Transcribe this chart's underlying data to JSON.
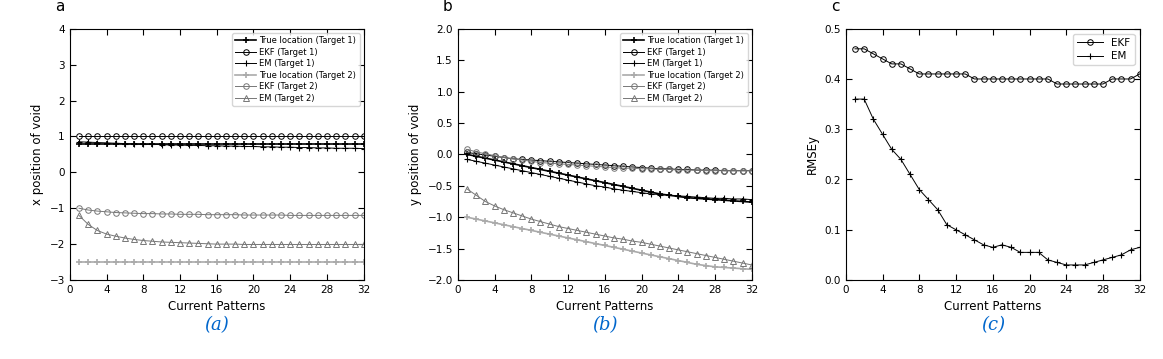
{
  "x": [
    1,
    2,
    3,
    4,
    5,
    6,
    7,
    8,
    9,
    10,
    11,
    12,
    13,
    14,
    15,
    16,
    17,
    18,
    19,
    20,
    21,
    22,
    23,
    24,
    25,
    26,
    27,
    28,
    29,
    30,
    31,
    32
  ],
  "a_true1": [
    0.8,
    0.8,
    0.8,
    0.8,
    0.8,
    0.8,
    0.8,
    0.8,
    0.8,
    0.8,
    0.8,
    0.8,
    0.8,
    0.8,
    0.8,
    0.8,
    0.8,
    0.8,
    0.8,
    0.8,
    0.8,
    0.8,
    0.8,
    0.8,
    0.8,
    0.8,
    0.8,
    0.8,
    0.8,
    0.8,
    0.8,
    0.8
  ],
  "a_ekf1": [
    1.0,
    1.0,
    1.0,
    1.0,
    1.0,
    1.0,
    1.0,
    1.0,
    1.0,
    1.0,
    1.0,
    1.0,
    1.0,
    1.0,
    1.0,
    1.0,
    1.0,
    1.0,
    1.0,
    1.0,
    1.0,
    1.0,
    1.0,
    1.0,
    1.0,
    1.0,
    1.0,
    1.0,
    1.0,
    1.0,
    1.0,
    1.0
  ],
  "a_em1": [
    0.85,
    0.84,
    0.83,
    0.82,
    0.81,
    0.8,
    0.79,
    0.78,
    0.78,
    0.77,
    0.76,
    0.76,
    0.75,
    0.75,
    0.74,
    0.74,
    0.73,
    0.73,
    0.72,
    0.72,
    0.71,
    0.71,
    0.7,
    0.7,
    0.69,
    0.69,
    0.68,
    0.68,
    0.67,
    0.67,
    0.67,
    0.66
  ],
  "a_true2": [
    -2.5,
    -2.5,
    -2.5,
    -2.5,
    -2.5,
    -2.5,
    -2.5,
    -2.5,
    -2.5,
    -2.5,
    -2.5,
    -2.5,
    -2.5,
    -2.5,
    -2.5,
    -2.5,
    -2.5,
    -2.5,
    -2.5,
    -2.5,
    -2.5,
    -2.5,
    -2.5,
    -2.5,
    -2.5,
    -2.5,
    -2.5,
    -2.5,
    -2.5,
    -2.5,
    -2.5,
    -2.5
  ],
  "a_ekf2": [
    -1.0,
    -1.05,
    -1.08,
    -1.1,
    -1.12,
    -1.13,
    -1.14,
    -1.15,
    -1.15,
    -1.16,
    -1.16,
    -1.17,
    -1.17,
    -1.17,
    -1.18,
    -1.18,
    -1.18,
    -1.18,
    -1.19,
    -1.19,
    -1.19,
    -1.19,
    -1.19,
    -1.2,
    -1.2,
    -1.2,
    -1.2,
    -1.2,
    -1.2,
    -1.2,
    -1.2,
    -1.2
  ],
  "a_em2": [
    -1.2,
    -1.45,
    -1.62,
    -1.72,
    -1.78,
    -1.83,
    -1.87,
    -1.9,
    -1.92,
    -1.94,
    -1.95,
    -1.96,
    -1.97,
    -1.98,
    -1.99,
    -2.0,
    -2.0,
    -2.0,
    -2.01,
    -2.01,
    -2.01,
    -2.01,
    -2.01,
    -2.01,
    -2.01,
    -2.01,
    -2.01,
    -2.01,
    -2.01,
    -2.01,
    -2.01,
    -2.01
  ],
  "b_true1": [
    0.0,
    -0.03,
    -0.06,
    -0.09,
    -0.12,
    -0.15,
    -0.18,
    -0.21,
    -0.24,
    -0.27,
    -0.3,
    -0.33,
    -0.36,
    -0.39,
    -0.42,
    -0.45,
    -0.48,
    -0.51,
    -0.54,
    -0.57,
    -0.6,
    -0.63,
    -0.65,
    -0.67,
    -0.69,
    -0.7,
    -0.71,
    -0.72,
    -0.73,
    -0.74,
    -0.75,
    -0.76
  ],
  "b_ekf1": [
    0.03,
    0.01,
    -0.01,
    -0.03,
    -0.05,
    -0.07,
    -0.08,
    -0.09,
    -0.1,
    -0.11,
    -0.12,
    -0.13,
    -0.14,
    -0.15,
    -0.16,
    -0.17,
    -0.18,
    -0.19,
    -0.2,
    -0.21,
    -0.22,
    -0.23,
    -0.23,
    -0.24,
    -0.24,
    -0.25,
    -0.25,
    -0.25,
    -0.26,
    -0.26,
    -0.26,
    -0.26
  ],
  "b_em1": [
    -0.08,
    -0.11,
    -0.14,
    -0.17,
    -0.2,
    -0.23,
    -0.26,
    -0.29,
    -0.32,
    -0.35,
    -0.38,
    -0.41,
    -0.44,
    -0.47,
    -0.5,
    -0.52,
    -0.55,
    -0.57,
    -0.59,
    -0.61,
    -0.63,
    -0.64,
    -0.65,
    -0.66,
    -0.67,
    -0.68,
    -0.69,
    -0.7,
    -0.7,
    -0.71,
    -0.71,
    -0.72
  ],
  "b_true2": [
    -1.0,
    -1.03,
    -1.06,
    -1.09,
    -1.12,
    -1.15,
    -1.18,
    -1.21,
    -1.24,
    -1.27,
    -1.3,
    -1.33,
    -1.36,
    -1.39,
    -1.42,
    -1.45,
    -1.48,
    -1.51,
    -1.54,
    -1.57,
    -1.6,
    -1.63,
    -1.66,
    -1.69,
    -1.72,
    -1.75,
    -1.77,
    -1.79,
    -1.8,
    -1.81,
    -1.82,
    -1.83
  ],
  "b_ekf2": [
    0.08,
    0.04,
    0.01,
    -0.02,
    -0.05,
    -0.07,
    -0.09,
    -0.11,
    -0.13,
    -0.14,
    -0.15,
    -0.16,
    -0.17,
    -0.18,
    -0.19,
    -0.2,
    -0.21,
    -0.22,
    -0.22,
    -0.23,
    -0.23,
    -0.24,
    -0.24,
    -0.25,
    -0.25,
    -0.25,
    -0.26,
    -0.26,
    -0.26,
    -0.26,
    -0.26,
    -0.26
  ],
  "b_em2": [
    -0.55,
    -0.65,
    -0.75,
    -0.82,
    -0.88,
    -0.93,
    -0.98,
    -1.03,
    -1.07,
    -1.11,
    -1.15,
    -1.18,
    -1.21,
    -1.24,
    -1.27,
    -1.3,
    -1.33,
    -1.35,
    -1.38,
    -1.4,
    -1.43,
    -1.46,
    -1.49,
    -1.52,
    -1.55,
    -1.58,
    -1.61,
    -1.64,
    -1.67,
    -1.7,
    -1.73,
    -1.76
  ],
  "c_x": [
    1,
    2,
    3,
    4,
    5,
    6,
    7,
    8,
    9,
    10,
    11,
    12,
    13,
    14,
    15,
    16,
    17,
    18,
    19,
    20,
    21,
    22,
    23,
    24,
    25,
    26,
    27,
    28,
    29,
    30,
    31,
    32
  ],
  "c_ekf": [
    0.46,
    0.46,
    0.45,
    0.44,
    0.43,
    0.43,
    0.42,
    0.41,
    0.41,
    0.41,
    0.41,
    0.41,
    0.41,
    0.4,
    0.4,
    0.4,
    0.4,
    0.4,
    0.4,
    0.4,
    0.4,
    0.4,
    0.39,
    0.39,
    0.39,
    0.39,
    0.39,
    0.39,
    0.4,
    0.4,
    0.4,
    0.41
  ],
  "c_em": [
    0.36,
    0.36,
    0.32,
    0.29,
    0.26,
    0.24,
    0.21,
    0.18,
    0.16,
    0.14,
    0.11,
    0.1,
    0.09,
    0.08,
    0.07,
    0.065,
    0.07,
    0.065,
    0.055,
    0.055,
    0.055,
    0.04,
    0.035,
    0.03,
    0.03,
    0.03,
    0.035,
    0.04,
    0.045,
    0.05,
    0.06,
    0.065
  ],
  "label_a": "(a)",
  "label_b": "(b)",
  "label_c": "(c)",
  "panel_a": "a",
  "panel_b": "b",
  "panel_c": "c",
  "xlabel": "Current Patterns",
  "ylabel_a": "x position of void",
  "ylabel_b": "y position of void",
  "ylabel_c": "RMSEy",
  "ylim_a": [
    -3,
    4
  ],
  "ylim_b": [
    -2,
    2
  ],
  "ylim_c": [
    0,
    0.5
  ],
  "xlim": [
    0,
    32
  ],
  "color_black": "#000000",
  "color_gray": "#777777",
  "color_lightgray": "#aaaaaa",
  "color_label": "#0066cc"
}
